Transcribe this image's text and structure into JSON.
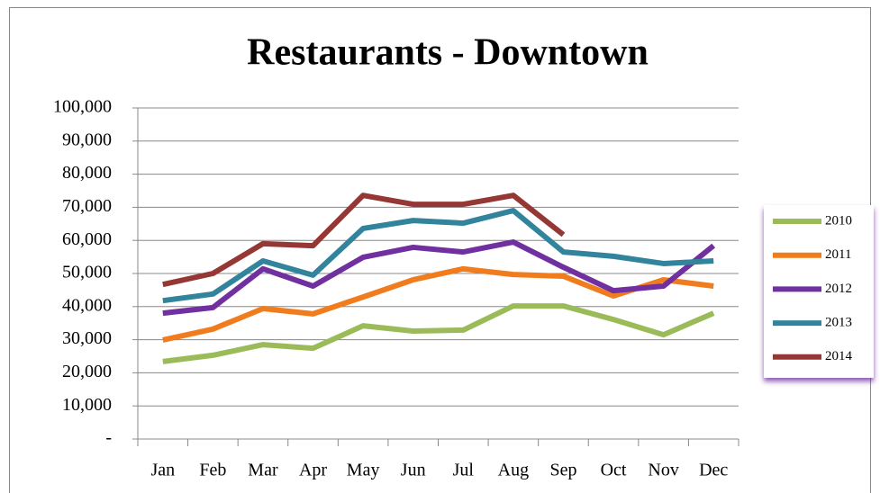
{
  "chart_data": {
    "type": "line",
    "title": "Restaurants - Downtown",
    "categories": [
      "Jan",
      "Feb",
      "Mar",
      "Apr",
      "May",
      "Jun",
      "Jul",
      "Aug",
      "Sep",
      "Oct",
      "Nov",
      "Dec"
    ],
    "series": [
      {
        "name": "2010",
        "color": "#9bbb59",
        "values": [
          23400,
          25300,
          28500,
          27400,
          34200,
          32600,
          32900,
          40200,
          40200,
          36100,
          31500,
          38000
        ]
      },
      {
        "name": "2011",
        "color": "#f07c1e",
        "values": [
          29900,
          33200,
          39400,
          37800,
          42900,
          48100,
          51400,
          49700,
          49200,
          43200,
          48100,
          46200
        ]
      },
      {
        "name": "2012",
        "color": "#7030a0",
        "values": [
          38000,
          39700,
          51400,
          46200,
          54900,
          57900,
          56500,
          59500,
          51900,
          44800,
          46200,
          58400
        ]
      },
      {
        "name": "2013",
        "color": "#31849b",
        "values": [
          41800,
          43800,
          53800,
          49500,
          63600,
          66000,
          65200,
          69000,
          56500,
          55200,
          53000,
          53800
        ]
      },
      {
        "name": "2014",
        "color": "#953735",
        "values": [
          46700,
          50000,
          59000,
          58400,
          73600,
          70900,
          70900,
          73600,
          61700,
          null,
          null,
          null
        ]
      }
    ],
    "ylim": [
      0,
      100000
    ],
    "yticks": [
      {
        "value": 0,
        "label": "-"
      },
      {
        "value": 10000,
        "label": "10,000"
      },
      {
        "value": 20000,
        "label": "20,000"
      },
      {
        "value": 30000,
        "label": "30,000"
      },
      {
        "value": 40000,
        "label": "40,000"
      },
      {
        "value": 50000,
        "label": "50,000"
      },
      {
        "value": 60000,
        "label": "60,000"
      },
      {
        "value": 70000,
        "label": "70,000"
      },
      {
        "value": 80000,
        "label": "80,000"
      },
      {
        "value": 90000,
        "label": "90,000"
      },
      {
        "value": 100000,
        "label": "100,000"
      }
    ],
    "grid": true,
    "legend": "right"
  }
}
